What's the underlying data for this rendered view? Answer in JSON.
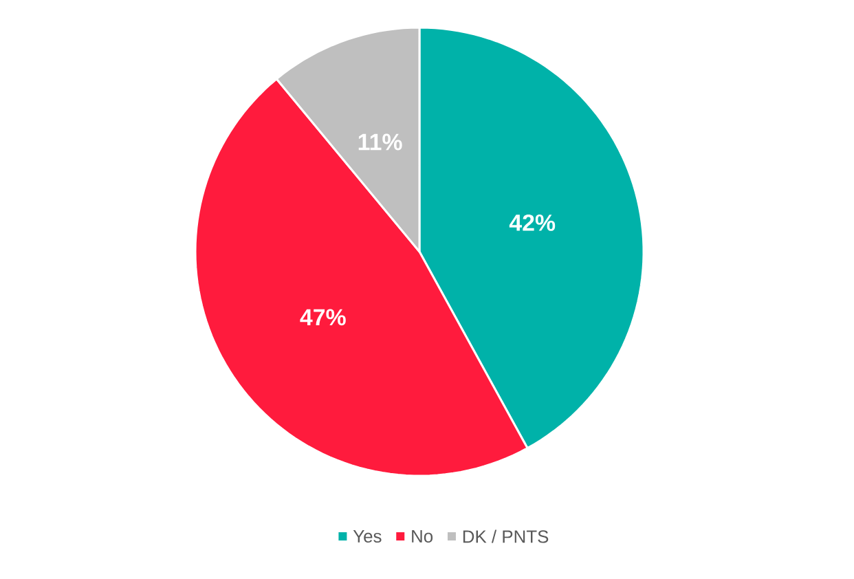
{
  "chart_data": {
    "type": "pie",
    "categories": [
      "Yes",
      "No",
      "DK / PNTS"
    ],
    "values": [
      42,
      47,
      11
    ],
    "colors": [
      "#00b2a9",
      "#ff1b3d",
      "#bfbfbf"
    ],
    "value_labels": [
      "42%",
      "47%",
      "11%"
    ],
    "legend": "bottom"
  }
}
